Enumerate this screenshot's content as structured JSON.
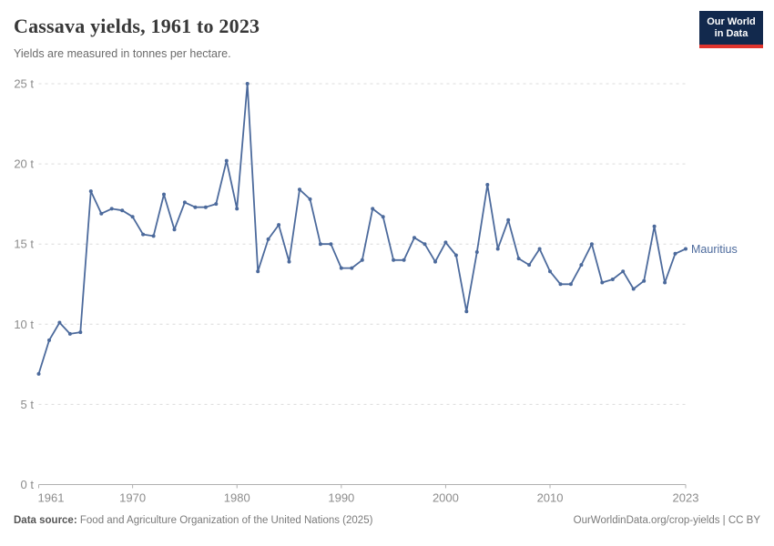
{
  "header": {
    "title": "Cassava yields, 1961 to 2023",
    "subtitle": "Yields are measured in tonnes per hectare.",
    "logo": {
      "line1": "Our World",
      "line2": "in Data"
    }
  },
  "chart_data": {
    "type": "line",
    "title": "Cassava yields, 1961 to 2023",
    "xlabel": "",
    "ylabel": "tonnes per hectare",
    "ylim": [
      0,
      25
    ],
    "grid": "horizontal-dashed",
    "legend_position": "end-of-line-label",
    "x": [
      1961,
      1962,
      1963,
      1964,
      1965,
      1966,
      1967,
      1968,
      1969,
      1970,
      1971,
      1972,
      1973,
      1974,
      1975,
      1976,
      1977,
      1978,
      1979,
      1980,
      1981,
      1982,
      1983,
      1984,
      1985,
      1986,
      1987,
      1988,
      1989,
      1990,
      1991,
      1992,
      1993,
      1994,
      1995,
      1996,
      1997,
      1998,
      1999,
      2000,
      2001,
      2002,
      2003,
      2004,
      2005,
      2006,
      2007,
      2008,
      2009,
      2010,
      2011,
      2012,
      2013,
      2014,
      2015,
      2016,
      2017,
      2018,
      2019,
      2020,
      2021,
      2022,
      2023
    ],
    "series": [
      {
        "name": "Mauritius",
        "color": "#4c6a9c",
        "values": [
          6.9,
          9.0,
          10.1,
          9.4,
          9.5,
          18.3,
          16.9,
          17.2,
          17.1,
          16.7,
          15.6,
          15.5,
          18.1,
          15.9,
          17.6,
          17.3,
          17.3,
          17.5,
          20.2,
          17.2,
          25.0,
          13.3,
          15.3,
          16.2,
          13.9,
          18.4,
          17.8,
          15.0,
          15.0,
          13.5,
          13.5,
          14.0,
          17.2,
          16.7,
          14.0,
          14.0,
          15.4,
          15.0,
          13.9,
          15.1,
          14.3,
          10.8,
          14.5,
          18.7,
          14.7,
          16.5,
          14.1,
          13.7,
          14.7,
          13.3,
          12.5,
          12.5,
          13.7,
          15.0,
          12.6,
          12.8,
          13.3,
          12.2,
          12.7,
          16.1,
          12.6,
          14.4,
          14.7
        ]
      }
    ],
    "yticks": [
      {
        "v": 0,
        "label": "0 t"
      },
      {
        "v": 5,
        "label": "5 t"
      },
      {
        "v": 10,
        "label": "10 t"
      },
      {
        "v": 15,
        "label": "15 t"
      },
      {
        "v": 20,
        "label": "20 t"
      },
      {
        "v": 25,
        "label": "25 t"
      }
    ],
    "xticks": [
      {
        "v": 1961,
        "label": "1961"
      },
      {
        "v": 1970,
        "label": "1970"
      },
      {
        "v": 1980,
        "label": "1980"
      },
      {
        "v": 1990,
        "label": "1990"
      },
      {
        "v": 2000,
        "label": "2000"
      },
      {
        "v": 2010,
        "label": "2010"
      },
      {
        "v": 2023,
        "label": "2023"
      }
    ]
  },
  "footer": {
    "datasource_label": "Data source:",
    "datasource_text": "Food and Agriculture Organization of the United Nations (2025)",
    "credit": "OurWorldinData.org/crop-yields | CC BY"
  },
  "colors": {
    "series": "#4c6a9c",
    "logo_background": "#12294d",
    "logo_accent": "#e0342d"
  }
}
